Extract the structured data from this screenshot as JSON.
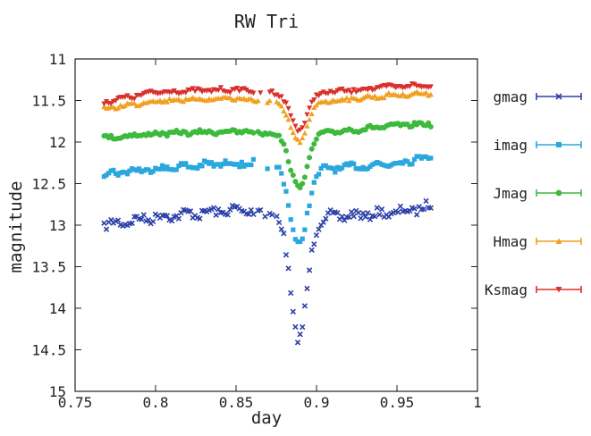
{
  "chart_data": {
    "type": "scatter",
    "title": "RW Tri",
    "xlabel": "day",
    "ylabel": "magnitude",
    "xlim": [
      0.75,
      1.0
    ],
    "ylim": [
      11,
      15
    ],
    "y_inverted": true,
    "grid": false,
    "legend_position": "right",
    "x_ticks": [
      0.75,
      0.8,
      0.85,
      0.9,
      0.95,
      1.0
    ],
    "x_tick_labels": [
      "0.75",
      "0.8",
      "0.85",
      "0.9",
      "0.95",
      "1"
    ],
    "y_ticks": [
      11,
      11.5,
      12,
      12.5,
      13,
      13.5,
      14,
      14.5,
      15
    ],
    "y_tick_labels": [
      "11",
      "11.5",
      "12",
      "12.5",
      "13",
      "13.5",
      "14",
      "14.5",
      "15"
    ],
    "eclipse_center": 0.889,
    "eclipse_halfwidth": 0.012,
    "series": [
      {
        "name": "gmag",
        "color": "#2b3fa8",
        "marker": "x",
        "base": [
          [
            0.768,
            13.0
          ],
          [
            0.8,
            12.9
          ],
          [
            0.85,
            12.82
          ],
          [
            0.87,
            12.85
          ],
          [
            0.91,
            12.9
          ],
          [
            0.95,
            12.85
          ],
          [
            0.972,
            12.77
          ]
        ],
        "depth": 1.48,
        "scatter": 0.05
      },
      {
        "name": "imag",
        "color": "#2aa7dd",
        "marker": "square",
        "base": [
          [
            0.768,
            12.38
          ],
          [
            0.8,
            12.32
          ],
          [
            0.85,
            12.25
          ],
          [
            0.87,
            12.27
          ],
          [
            0.91,
            12.32
          ],
          [
            0.95,
            12.25
          ],
          [
            0.972,
            12.16
          ]
        ],
        "depth": 0.95,
        "scatter": 0.035
      },
      {
        "name": "Jmag",
        "color": "#3dba3d",
        "marker": "circle",
        "base": [
          [
            0.768,
            11.95
          ],
          [
            0.8,
            11.9
          ],
          [
            0.85,
            11.87
          ],
          [
            0.87,
            11.9
          ],
          [
            0.91,
            11.88
          ],
          [
            0.95,
            11.8
          ],
          [
            0.972,
            11.78
          ]
        ],
        "depth": 0.66,
        "scatter": 0.022
      },
      {
        "name": "Hmag",
        "color": "#f0a020",
        "marker": "triangle",
        "base": [
          [
            0.768,
            11.6
          ],
          [
            0.8,
            11.5
          ],
          [
            0.85,
            11.47
          ],
          [
            0.87,
            11.52
          ],
          [
            0.91,
            11.5
          ],
          [
            0.95,
            11.43
          ],
          [
            0.972,
            11.41
          ]
        ],
        "depth": 0.49,
        "scatter": 0.022
      },
      {
        "name": "Ksmag",
        "color": "#d8302a",
        "marker": "triangle-down",
        "base": [
          [
            0.768,
            11.52
          ],
          [
            0.8,
            11.4
          ],
          [
            0.85,
            11.37
          ],
          [
            0.87,
            11.4
          ],
          [
            0.91,
            11.4
          ],
          [
            0.95,
            11.33
          ],
          [
            0.972,
            11.32
          ]
        ],
        "depth": 0.45,
        "scatter": 0.022
      }
    ]
  }
}
